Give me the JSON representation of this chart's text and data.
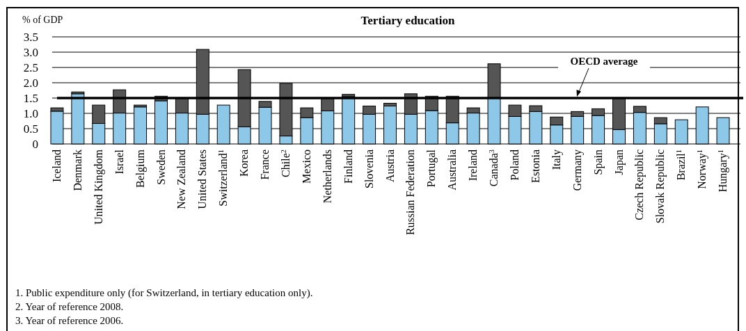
{
  "chart_data": {
    "type": "bar",
    "stacked": true,
    "title": "Tertiary education",
    "ylabel": "% of GDP",
    "categories": [
      "Iceland",
      "Denmark",
      "United Kingdom",
      "Israel",
      "Belgium",
      "Sweden",
      "New Zealand",
      "United States",
      "Switzerland$^{1}$",
      "Korea",
      "France",
      "Chile$^{2}$",
      "Mexico",
      "Netherlands",
      "Finland",
      "Slovenia",
      "Austria",
      "Russian Federation",
      "Portugal",
      "Australia",
      "Ireland",
      "Canada$^{3}$",
      "Poland",
      "Estonia",
      "Italy",
      "Germany",
      "Spain",
      "Japan",
      "Czech Republic",
      "Slovak Republic",
      "Brazil$^{1}$",
      "Norway$^{1}$",
      "Hungary$^{1}$"
    ],
    "series": [
      {
        "color": "#8ec8e8",
        "values": [
          1.07,
          1.64,
          0.67,
          1.01,
          1.21,
          1.41,
          1.01,
          0.97,
          1.27,
          0.56,
          1.2,
          0.26,
          0.86,
          1.08,
          1.55,
          0.97,
          1.24,
          0.97,
          1.09,
          0.69,
          1.01,
          1.51,
          0.9,
          1.06,
          0.62,
          0.9,
          0.93,
          0.47,
          1.03,
          0.66,
          0.79,
          1.21,
          0.86
        ]
      },
      {
        "color": "#555555",
        "values": [
          0.11,
          0.06,
          0.6,
          0.76,
          0.06,
          0.15,
          0.5,
          2.12,
          null,
          1.87,
          0.19,
          1.72,
          0.32,
          0.41,
          0.07,
          0.27,
          0.09,
          0.67,
          0.47,
          0.87,
          0.17,
          1.11,
          0.37,
          0.19,
          0.26,
          0.16,
          0.22,
          1.02,
          0.2,
          0.2,
          null,
          null,
          null
        ]
      }
    ],
    "ylim": [
      0,
      3.5
    ],
    "yticks": [
      {
        "value": 0,
        "label": "0"
      },
      {
        "value": 0.5,
        "label": "0.5"
      },
      {
        "value": 1,
        "label": "1.0"
      },
      {
        "value": 1.5,
        "label": "1.5"
      },
      {
        "value": 2,
        "label": "2.0"
      },
      {
        "value": 2.5,
        "label": "2.5"
      },
      {
        "value": 3,
        "label": "3.0"
      },
      {
        "value": 3.5,
        "label": "3.5"
      }
    ],
    "grid": "y",
    "ref_lines": [
      {
        "axis": "y",
        "value": 1.5,
        "label": "OECD average",
        "color": "#000000"
      }
    ],
    "annotations": [
      "1. Public expenditure only (for Switzerland, in tertiary education only).",
      "2. Year of reference 2008.",
      "3. Year of reference 2006."
    ]
  }
}
